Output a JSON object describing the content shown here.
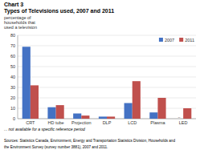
{
  "chart_data": {
    "type": "bar",
    "title": "Chart 3",
    "subtitle": "Types of Televisions used, 2007 and 2011",
    "ylabel": [
      "percentage of",
      "households that",
      "used a television"
    ],
    "categories": [
      "CRT",
      "HD tube",
      "Projection",
      "DLP",
      "LCD",
      "Plasma",
      "LED"
    ],
    "series": [
      {
        "name": "2007",
        "color": "#4472C4",
        "values": [
          69,
          11,
          5,
          2,
          15,
          6,
          null
        ]
      },
      {
        "name": "2011",
        "color": "#C0504D",
        "values": [
          32,
          13,
          3,
          2,
          36,
          20,
          10
        ]
      }
    ],
    "annotations": [
      {
        "text": "..",
        "category": "LED",
        "series": "2007"
      }
    ],
    "footnote": "... not available for a specific reference period",
    "source": [
      "Sources: Statistics Canada, Environment, Energy and Transportation Statistics Division, Households and",
      "the Environment Survey (survey number 3881), 2007 and 2011."
    ],
    "ylim": [
      0,
      80
    ],
    "yticks": [
      0,
      10,
      20,
      30,
      40,
      50,
      60,
      70,
      80
    ],
    "grid": true,
    "legend": "upper right"
  }
}
